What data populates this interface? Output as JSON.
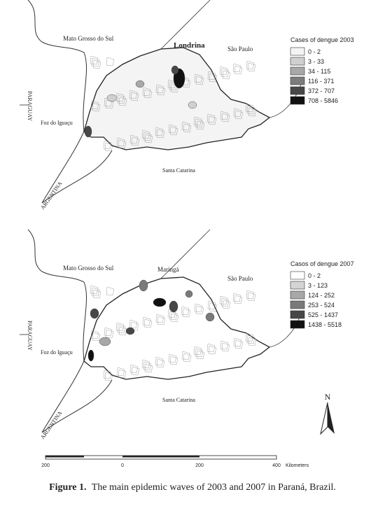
{
  "maps": [
    {
      "labels": {
        "north_state": "Mato Grosso do Sul",
        "east_state": "São Paulo",
        "city": "Londrina",
        "west_country": "PARAGUAY",
        "border_city": "Foz do Iguaçu",
        "south_state": "Santa Catarina",
        "south_country": "ARGENTINA"
      },
      "legend": {
        "title": "Cases of dengue 2003",
        "items": [
          {
            "label": "0 - 2",
            "color": "#f4f4f4"
          },
          {
            "label": "3 - 33",
            "color": "#d0d0d0"
          },
          {
            "label": "34 - 115",
            "color": "#a8a8a8"
          },
          {
            "label": "116 - 371",
            "color": "#7c7c7c"
          },
          {
            "label": "372 - 707",
            "color": "#484848"
          },
          {
            "label": "708 - 5846",
            "color": "#111111"
          }
        ]
      }
    },
    {
      "labels": {
        "north_state": "Mato Grosso do Sul",
        "east_state": "São Paulo",
        "city": "Maringá",
        "west_country": "PARAGUAY",
        "border_city": "Foz do Iguaçu",
        "south_state": "Santa Catarina",
        "south_country": "ARGENTINA"
      },
      "legend": {
        "title": "Casos of dengue 2007",
        "items": [
          {
            "label": "0 - 2",
            "color": "#ffffff"
          },
          {
            "label": "3 - 123",
            "color": "#d4d4d4"
          },
          {
            "label": "124 - 252",
            "color": "#a8a8a8"
          },
          {
            "label": "253 - 524",
            "color": "#7a7a7a"
          },
          {
            "label": "525 - 1437",
            "color": "#474747"
          },
          {
            "label": "1438 - 5518",
            "color": "#111111"
          }
        ]
      }
    }
  ],
  "north": "N",
  "scale": {
    "ticks": [
      "200",
      "0",
      "200",
      "400"
    ],
    "unit": "Kilometers"
  },
  "caption": {
    "label": "Figure 1.",
    "text": "The main epidemic waves of 2003 and 2007 in Paraná, Brazil."
  }
}
